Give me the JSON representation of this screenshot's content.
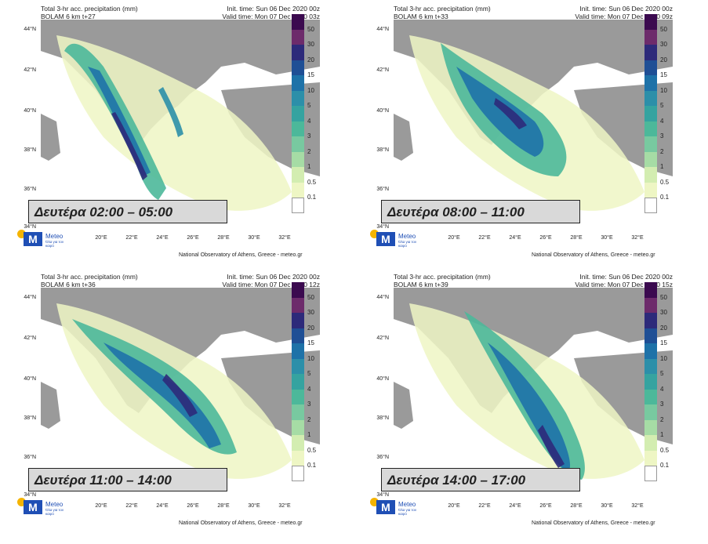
{
  "panels": [
    {
      "title": "Total 3-hr acc. precipitation (mm)",
      "model": "BOLAM 6 km t+27",
      "init": "Init. time: Sun 06 Dec 2020 00z",
      "valid": "Valid time: Mon 07 Dec 2020 03z",
      "caption": "Δευτέρα 02:00 – 05:00"
    },
    {
      "title": "Total 3-hr acc. precipitation (mm)",
      "model": "BOLAM 6 km t+33",
      "init": "Init. time: Sun 06 Dec 2020 00z",
      "valid": "Valid time: Mon 07 Dec 2020 09z",
      "caption": "Δευτέρα 08:00 – 11:00"
    },
    {
      "title": "Total 3-hr acc. precipitation (mm)",
      "model": "BOLAM 6 km t+36",
      "init": "Init. time: Sun 06 Dec 2020 00z",
      "valid": "Valid time: Mon 07 Dec 2020 12z",
      "caption": "Δευτέρα 11:00 – 14:00"
    },
    {
      "title": "Total 3-hr acc. precipitation (mm)",
      "model": "BOLAM 6 km t+39",
      "init": "Init. time: Sun 06 Dec 2020 00z",
      "valid": "Valid time: Mon 07 Dec 2020 15z",
      "caption": "Δευτέρα 14:00 – 17:00"
    }
  ],
  "lat_labels": [
    "44°N",
    "42°N",
    "40°N",
    "38°N",
    "36°N",
    "34°N"
  ],
  "lon_labels": [
    "20°E",
    "22°E",
    "24°E",
    "26°E",
    "28°E",
    "30°E",
    "32°E"
  ],
  "colorbar": {
    "labels": [
      "50",
      "30",
      "20",
      "15",
      "10",
      "5",
      "4",
      "3",
      "2",
      "1",
      "0.5",
      "0.1"
    ],
    "colors": [
      "#3b0a4f",
      "#6d2b6b",
      "#2d2a7a",
      "#1f4f95",
      "#1e72a8",
      "#2c8fa9",
      "#35a3a0",
      "#4cb89a",
      "#78c9a0",
      "#a6dca5",
      "#d3edb1",
      "#eef6c4",
      "#ffffff"
    ]
  },
  "logo": {
    "name": "Meteo",
    "tagline": "Όλα για τον καιρό",
    "mark": "M"
  },
  "footer": "National Observatory of Athens, Greece - meteo.gr"
}
